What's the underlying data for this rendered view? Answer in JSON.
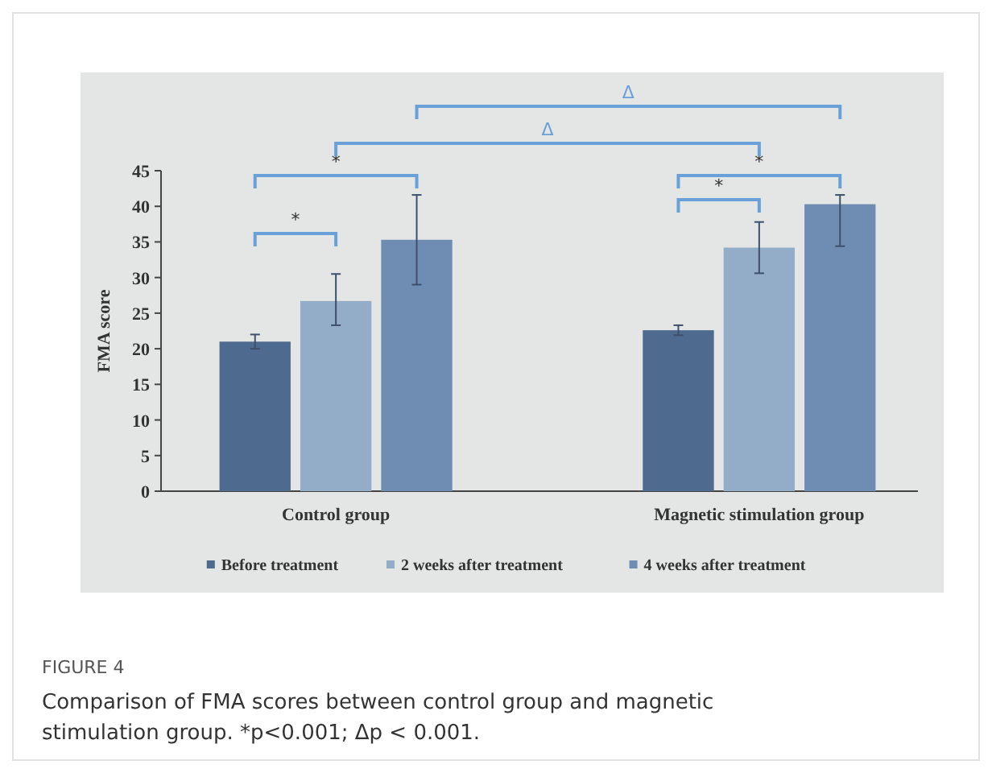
{
  "chart_data": {
    "type": "bar",
    "categories": [
      "Control group",
      "Magnetic stimulation group"
    ],
    "ylabel": "FMA score",
    "ylim": [
      0,
      45
    ],
    "yticks": [
      0,
      5,
      10,
      15,
      20,
      25,
      30,
      35,
      40,
      45
    ],
    "series": [
      {
        "name": "Before treatment",
        "color": "#4f6a8f",
        "values": [
          21.0,
          22.6
        ],
        "errors": [
          [
            20.0,
            22.0
          ],
          [
            21.9,
            23.3
          ]
        ]
      },
      {
        "name": "2 weeks after treatment",
        "color": "#93acc8",
        "values": [
          26.7,
          34.2
        ],
        "errors": [
          [
            23.3,
            30.5
          ],
          [
            30.6,
            37.8
          ]
        ]
      },
      {
        "name": "4 weeks after treatment",
        "color": "#6f8db3",
        "values": [
          35.3,
          40.3
        ],
        "errors": [
          [
            29.0,
            41.6
          ],
          [
            34.4,
            41.6
          ]
        ]
      }
    ],
    "legend": "bottom",
    "annotations": [
      "*",
      "*",
      "*",
      "*",
      "Δ",
      "Δ",
      "FIGURE 4",
      "Comparison of FMA scores between control group and magnetic stimulation group. *p<0.001; Δp < 0.001."
    ]
  }
}
